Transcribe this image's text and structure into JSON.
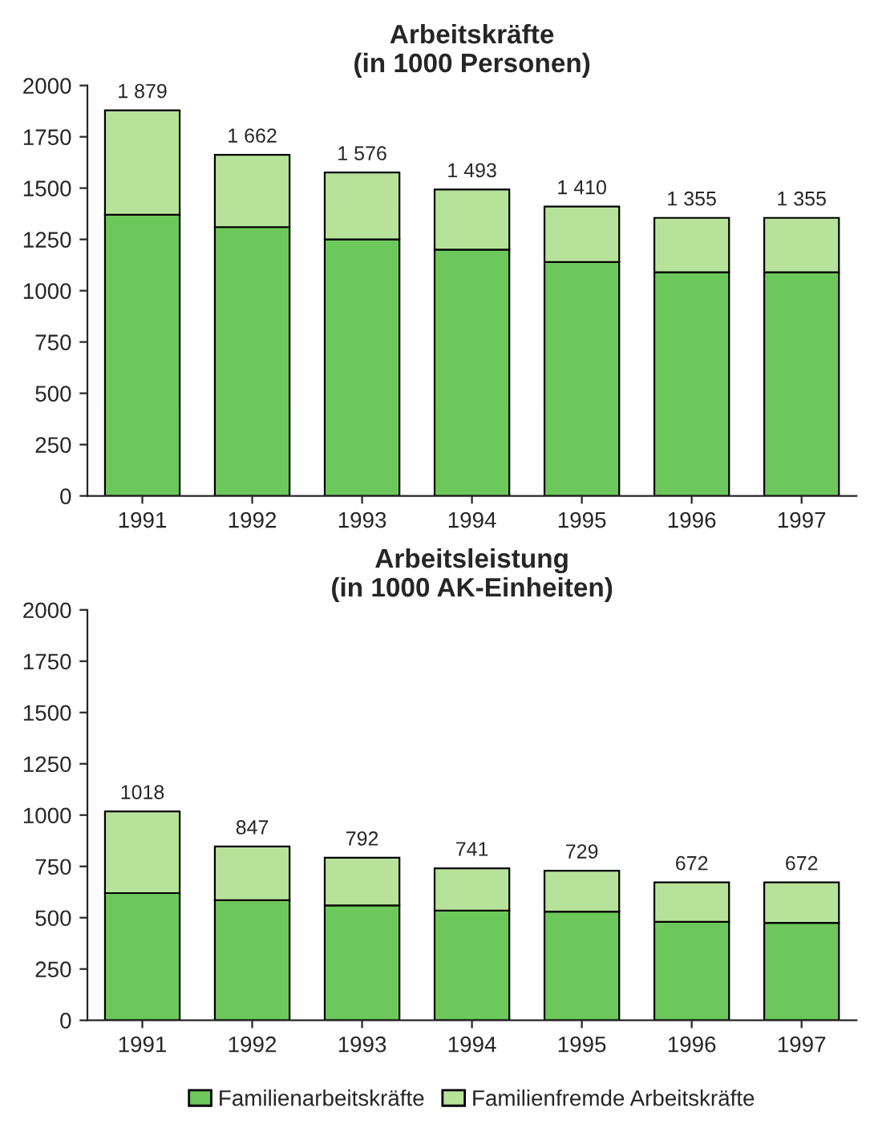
{
  "chart_data": [
    {
      "type": "bar",
      "title": "Arbeitskräfte\n(in 1000 Personen)",
      "categories": [
        "1991",
        "1992",
        "1993",
        "1994",
        "1995",
        "1996",
        "1997"
      ],
      "stacked": true,
      "series": [
        {
          "color": "#6cc85a",
          "values": [
            1370,
            1310,
            1250,
            1200,
            1140,
            1090,
            1090
          ]
        },
        {
          "color": "#b7e29a",
          "values": [
            509,
            352,
            326,
            293,
            270,
            265,
            265
          ]
        }
      ],
      "totals": [
        "1 879",
        "1 662",
        "1 576",
        "1 493",
        "1 410",
        "1 355",
        "1 355"
      ],
      "ylim": [
        0,
        2000
      ],
      "yticks": [
        0,
        250,
        500,
        750,
        1000,
        1250,
        1500,
        1750,
        2000
      ],
      "grid": false,
      "legend": false
    },
    {
      "type": "bar",
      "title": "Arbeitsleistung\n(in 1000 AK-Einheiten)",
      "categories": [
        "1991",
        "1992",
        "1993",
        "1994",
        "1995",
        "1996",
        "1997"
      ],
      "stacked": true,
      "series": [
        {
          "name": "Familienarbeitskräfte",
          "color": "#6cc85a",
          "values": [
            620,
            585,
            560,
            535,
            530,
            480,
            475
          ]
        },
        {
          "name": "Familienfremde Arbeitskräfte",
          "color": "#b7e29a",
          "values": [
            398,
            262,
            232,
            206,
            199,
            192,
            197
          ]
        }
      ],
      "totals": [
        "1018",
        "847",
        "792",
        "741",
        "729",
        "672",
        "672"
      ],
      "ylim": [
        0,
        2000
      ],
      "yticks": [
        0,
        250,
        500,
        750,
        1000,
        1250,
        1500,
        1750,
        2000
      ],
      "grid": false,
      "legend": "bottom"
    }
  ]
}
